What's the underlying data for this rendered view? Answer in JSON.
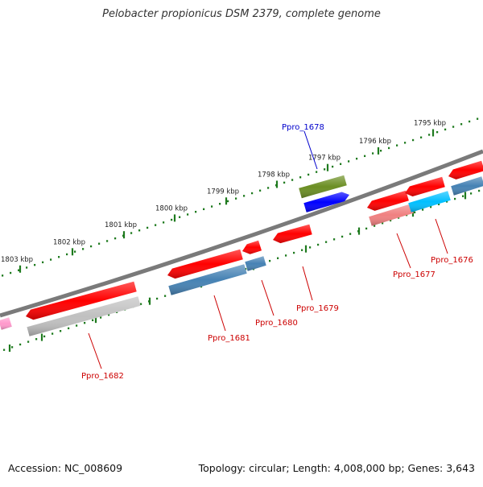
{
  "title": "Pelobacter propionicus DSM 2379, complete genome",
  "footer": {
    "accession": "Accession: NC_008609",
    "summary": "Topology: circular; Length: 4,008,000 bp; Genes: 3,643"
  },
  "ruler": {
    "labels": [
      "1795 kbp",
      "1796 kbp",
      "1797 kbp",
      "1798 kbp",
      "1799 kbp",
      "1800 kbp",
      "1801 kbp",
      "1802 kbp",
      "1803 kbp"
    ],
    "tick_color": "#1e7a1e"
  },
  "backbone_color": "#7a7a7a",
  "genes": [
    {
      "name": "Ppro_1676",
      "color": "#ff0000",
      "partner_color": "#00bfff",
      "label_color": "#cc0000"
    },
    {
      "name": "Ppro_1677",
      "color": "#ff0000",
      "partner_color": "#f08080",
      "label_color": "#cc0000"
    },
    {
      "name": "Ppro_1678",
      "color": "#0000ff",
      "partner_color": "#6b8e23",
      "label_color": "#0000cc"
    },
    {
      "name": "Ppro_1679",
      "color": "#ff0000",
      "label_color": "#cc0000"
    },
    {
      "name": "Ppro_1680",
      "color": "#ff0000",
      "partner_color": "#4682b4",
      "label_color": "#cc0000"
    },
    {
      "name": "Ppro_1681",
      "color": "#ff0000",
      "partner_color": "#4682b4",
      "label_color": "#cc0000"
    },
    {
      "name": "Ppro_1682",
      "color": "#ff0000",
      "partner_color": "#c0c0c0",
      "label_color": "#cc0000"
    }
  ]
}
